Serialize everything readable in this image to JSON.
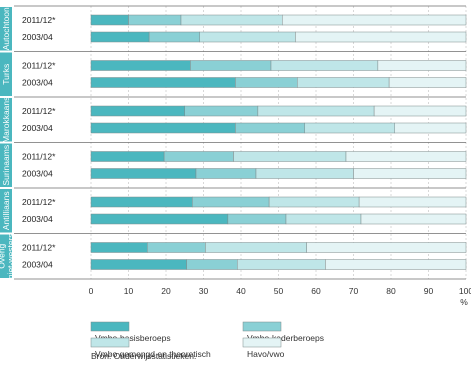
{
  "chart_data": {
    "type": "bar",
    "orientation": "horizontal",
    "stacked": true,
    "groups": [
      {
        "label": "Autochtoon",
        "rows": [
          {
            "period": "2011/12*",
            "values": [
              10,
              14,
              27,
              49
            ]
          },
          {
            "period": "2003/04",
            "values": [
              15.5,
              13.5,
              25.5,
              45.5
            ]
          }
        ]
      },
      {
        "label": "Turks",
        "rows": [
          {
            "period": "2011/12*",
            "values": [
              26.5,
              21.5,
              28.5,
              23.5
            ]
          },
          {
            "period": "2003/04",
            "values": [
              38.5,
              16.5,
              24.5,
              20.5
            ]
          }
        ]
      },
      {
        "label": "Marokkaans",
        "rows": [
          {
            "period": "2011/12*",
            "values": [
              25,
              19.5,
              31,
              24.5
            ]
          },
          {
            "period": "2003/04",
            "values": [
              38.5,
              18.5,
              24,
              19
            ]
          }
        ]
      },
      {
        "label": "Surinaams",
        "rows": [
          {
            "period": "2011/12*",
            "values": [
              19.5,
              18.5,
              30,
              32
            ]
          },
          {
            "period": "2003/04",
            "values": [
              28,
              16,
              26,
              30
            ]
          }
        ]
      },
      {
        "label": "Antilliaans",
        "rows": [
          {
            "period": "2011/12*",
            "values": [
              27,
              20.5,
              24,
              28.5
            ]
          },
          {
            "period": "2003/04",
            "values": [
              36.5,
              15.5,
              20,
              28
            ]
          }
        ]
      },
      {
        "label": "Overig niet-westers",
        "rows": [
          {
            "period": "2011/12*",
            "values": [
              15,
              15.5,
              27,
              42.5
            ]
          },
          {
            "period": "2003/04",
            "values": [
              25.5,
              13.5,
              23.5,
              37.5
            ]
          }
        ]
      }
    ],
    "series": [
      {
        "name": "Vmbo-basisberoeps",
        "color": "#4bb7bf"
      },
      {
        "name": "Vmbo-kaderberoeps",
        "color": "#8ad0d5"
      },
      {
        "name": "Vmbo gemengd en theoretisch",
        "color": "#bfe6e8"
      },
      {
        "name": "Havo/vwo",
        "color": "#e4f4f5"
      }
    ],
    "xlim": [
      0,
      100
    ],
    "xticks": [
      "0",
      "10",
      "20",
      "30",
      "40",
      "50",
      "60",
      "70",
      "80",
      "90",
      "100"
    ],
    "x_unit": "%",
    "grid": "vertical dashed",
    "legend": "bottom",
    "group_label_color": "#4bb7bf"
  },
  "source": "Bron: Onderwijsstatistieken."
}
